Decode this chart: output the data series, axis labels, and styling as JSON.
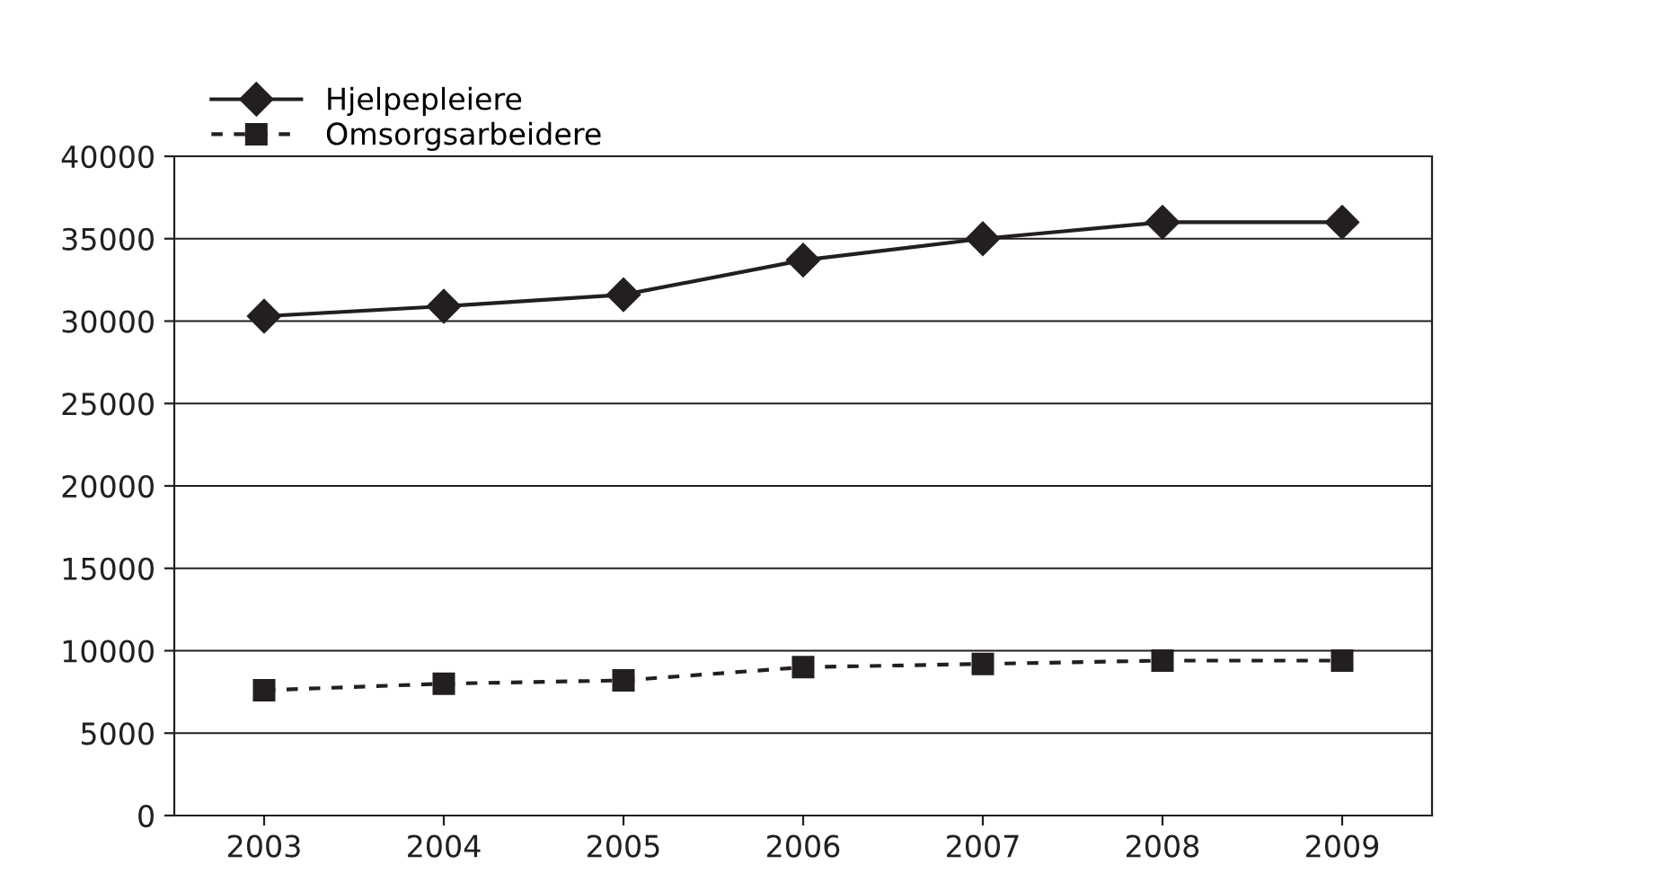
{
  "chart_data": {
    "type": "line",
    "categories": [
      "2003",
      "2004",
      "2005",
      "2006",
      "2007",
      "2008",
      "2009"
    ],
    "series": [
      {
        "name": "Hjelpepleiere",
        "color": "#231f20",
        "values": [
          30300,
          30900,
          31600,
          33700,
          35000,
          36000,
          36000
        ],
        "marker": "diamond",
        "line_style": "solid"
      },
      {
        "name": "Omsorgsarbeidere",
        "color": "#231f20",
        "values": [
          7600,
          8000,
          8200,
          9000,
          9200,
          9400,
          9400
        ],
        "marker": "square",
        "line_style": "dashed"
      }
    ],
    "ylim": [
      0,
      40000
    ],
    "yticks": [
      0,
      5000,
      10000,
      15000,
      20000,
      25000,
      30000,
      35000,
      40000
    ],
    "grid": "y",
    "legend": "top left"
  }
}
